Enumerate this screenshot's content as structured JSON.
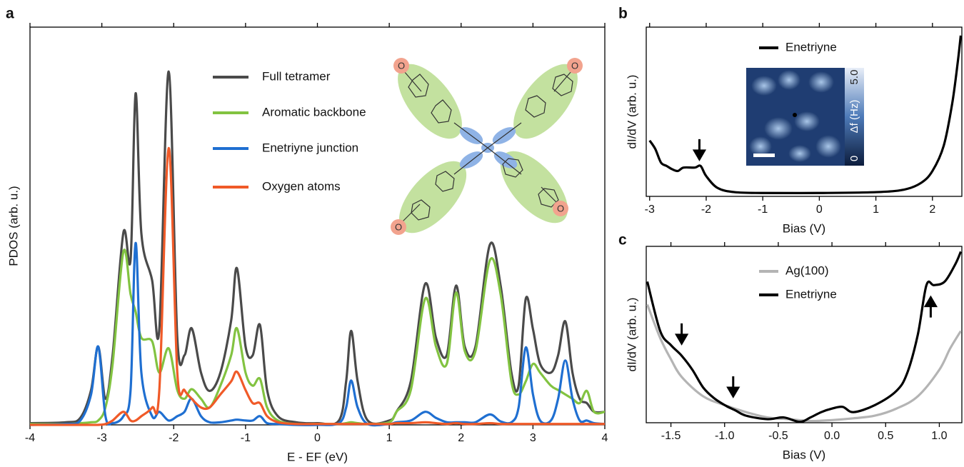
{
  "chart_data": [
    {
      "type": "line",
      "panel": "a",
      "xlabel": "E - EF (eV)",
      "ylabel": "PDOS (arb. u.)",
      "xlim": [
        -4,
        4
      ],
      "ylim": [
        0,
        4.57
      ],
      "xticks": [
        -4,
        -3,
        -2,
        -1,
        0,
        1,
        2,
        3,
        4
      ],
      "molecule_labels": [
        "O",
        "O",
        "O",
        "O"
      ],
      "x": [
        -4,
        -3.5,
        -3.3,
        -3.15,
        -3.05,
        -2.95,
        -2.85,
        -2.7,
        -2.6,
        -2.53,
        -2.45,
        -2.3,
        -2.2,
        -2.07,
        -1.95,
        -1.85,
        -1.75,
        -1.62,
        -1.5,
        -1.35,
        -1.2,
        -1.12,
        -1.0,
        -0.9,
        -0.8,
        -0.7,
        -0.55,
        -0.3,
        0,
        0.3,
        0.4,
        0.47,
        0.56,
        0.7,
        1.0,
        1.1,
        1.3,
        1.5,
        1.65,
        1.8,
        1.93,
        2.05,
        2.2,
        2.4,
        2.55,
        2.7,
        2.8,
        2.9,
        3.0,
        3.1,
        3.25,
        3.35,
        3.45,
        3.55,
        3.65,
        3.75,
        3.85,
        4.0
      ],
      "series": [
        {
          "name": "Full tetramer",
          "color": "#4a4a4a",
          "values": [
            0.02,
            0.03,
            0.08,
            0.4,
            0.9,
            0.3,
            0.8,
            2.21,
            1.9,
            3.81,
            2.2,
            1.66,
            1.1,
            4.06,
            1.0,
            0.8,
            1.11,
            0.6,
            0.39,
            0.6,
            1.2,
            1.8,
            0.9,
            0.8,
            1.15,
            0.4,
            0.1,
            0.03,
            0.02,
            0.05,
            0.5,
            1.08,
            0.5,
            0.05,
            0.05,
            0.15,
            0.5,
            1.62,
            1.0,
            0.8,
            1.6,
            0.9,
            0.9,
            2.07,
            1.6,
            0.6,
            0.45,
            1.45,
            1.1,
            0.7,
            0.6,
            0.8,
            1.19,
            0.6,
            0.3,
            0.25,
            0.15,
            0.15
          ]
        },
        {
          "name": "Aromatic backbone",
          "color": "#82c341",
          "values": [
            0.01,
            0.01,
            0.02,
            0.03,
            0.05,
            0.2,
            0.7,
            1.99,
            1.5,
            1.3,
            1.0,
            0.96,
            0.6,
            0.88,
            0.4,
            0.3,
            0.41,
            0.3,
            0.2,
            0.45,
            0.8,
            1.11,
            0.6,
            0.45,
            0.53,
            0.2,
            0.05,
            0.01,
            0.01,
            0.01,
            0.02,
            0.03,
            0.02,
            0.01,
            0.03,
            0.15,
            0.4,
            1.45,
            0.9,
            0.7,
            1.52,
            0.85,
            0.85,
            1.89,
            1.5,
            0.5,
            0.35,
            0.5,
            0.7,
            0.6,
            0.45,
            0.4,
            0.35,
            0.3,
            0.25,
            0.39,
            0.15,
            0.15
          ]
        },
        {
          "name": "Enetriyne junction",
          "color": "#1f6fd1",
          "values": [
            0,
            0.01,
            0.05,
            0.35,
            0.9,
            0.1,
            0.02,
            0.1,
            0.4,
            2.09,
            0.6,
            0.1,
            0.15,
            0.05,
            0.1,
            0.15,
            0.3,
            0.1,
            0.03,
            0.03,
            0.05,
            0.06,
            0.05,
            0.05,
            0.1,
            0.02,
            0.01,
            0,
            0,
            0.02,
            0.2,
            0.51,
            0.2,
            0.01,
            0.01,
            0.03,
            0.05,
            0.15,
            0.08,
            0.03,
            0.03,
            0.03,
            0.03,
            0.12,
            0.04,
            0.03,
            0.2,
            0.89,
            0.35,
            0.05,
            0.05,
            0.3,
            0.74,
            0.3,
            0.05,
            0.05,
            0.02,
            0.01
          ]
        },
        {
          "name": "Oxygen atoms",
          "color": "#f05a28",
          "values": [
            0,
            0,
            0,
            0,
            0,
            0.01,
            0.05,
            0.15,
            0.05,
            0.05,
            0.1,
            0.2,
            0.4,
            3.18,
            0.6,
            0.4,
            0.3,
            0.2,
            0.2,
            0.35,
            0.5,
            0.61,
            0.4,
            0.25,
            0.25,
            0.1,
            0.03,
            0.01,
            0.01,
            0.01,
            0.01,
            0.01,
            0.01,
            0.01,
            0.01,
            0.02,
            0.02,
            0.03,
            0.02,
            0.01,
            0.02,
            0.01,
            0.01,
            0.02,
            0.01,
            0.01,
            0.01,
            0.01,
            0.01,
            0.01,
            0.01,
            0.01,
            0.01,
            0.01,
            0.01,
            0.01,
            0.01,
            0.01
          ]
        }
      ]
    },
    {
      "type": "line",
      "panel": "b",
      "xlabel": "Bias (V)",
      "ylabel": "dI/dV (arb. u.)",
      "xlim": [
        -3.06,
        2.52
      ],
      "ylim": [
        0,
        1
      ],
      "xticks": [
        -3,
        -2,
        -1,
        0,
        1,
        2
      ],
      "inset_labels": [
        "5.0",
        "Δf (Hz)",
        "0"
      ],
      "arrows": [
        {
          "x": -2.12,
          "y": 0.22,
          "direction": "down"
        }
      ],
      "x": [
        -3,
        -2.9,
        -2.8,
        -2.7,
        -2.6,
        -2.5,
        -2.4,
        -2.2,
        -2.1,
        -2.0,
        -1.8,
        -1.5,
        -1,
        0,
        1,
        1.5,
        1.8,
        2.0,
        2.2,
        2.35,
        2.45,
        2.5
      ],
      "series": [
        {
          "name": "Enetriyne",
          "color": "#000000",
          "values": [
            0.33,
            0.28,
            0.2,
            0.18,
            0.16,
            0.15,
            0.17,
            0.17,
            0.18,
            0.12,
            0.05,
            0.025,
            0.02,
            0.02,
            0.025,
            0.04,
            0.08,
            0.15,
            0.3,
            0.55,
            0.8,
            0.95
          ]
        }
      ]
    },
    {
      "type": "line",
      "panel": "c",
      "xlabel": "Bias (V)",
      "ylabel": "dI/dV (arb. u.)",
      "xlim": [
        -1.73,
        1.21
      ],
      "ylim": [
        0,
        1
      ],
      "xticks": [
        -1.5,
        {
          "value": -1,
          "label": "-1.0"
        },
        -0.5,
        {
          "value": 0,
          "label": "0.0"
        },
        0.5,
        {
          "value": 1,
          "label": "1.0"
        }
      ],
      "arrows": [
        {
          "x": -1.4,
          "y": 0.45,
          "direction": "down"
        },
        {
          "x": -0.92,
          "y": 0.15,
          "direction": "down"
        },
        {
          "x": 0.92,
          "y": 0.71,
          "direction": "up"
        }
      ],
      "series": [
        {
          "name": "Ag(100)",
          "color": "#b4b4b4",
          "x": [
            -1.72,
            -1.6,
            -1.5,
            -1.4,
            -1.2,
            -1.0,
            -0.8,
            -0.6,
            -0.4,
            -0.2,
            0,
            0.2,
            0.4,
            0.6,
            0.8,
            1.0,
            1.1,
            1.2
          ],
          "values": [
            0.67,
            0.48,
            0.36,
            0.26,
            0.15,
            0.1,
            0.06,
            0.03,
            0.02,
            0.01,
            0.015,
            0.025,
            0.04,
            0.08,
            0.15,
            0.3,
            0.42,
            0.52
          ]
        },
        {
          "name": "Enetriyne",
          "color": "#000000",
          "x": [
            -1.72,
            -1.6,
            -1.5,
            -1.4,
            -1.3,
            -1.2,
            -1.1,
            -1.0,
            -0.9,
            -0.8,
            -0.6,
            -0.45,
            -0.3,
            -0.2,
            -0.1,
            0.0,
            0.1,
            0.2,
            0.4,
            0.6,
            0.7,
            0.8,
            0.88,
            0.95,
            1.05,
            1.15,
            1.2
          ],
          "values": [
            0.8,
            0.52,
            0.44,
            0.38,
            0.3,
            0.2,
            0.14,
            0.1,
            0.07,
            0.04,
            0.02,
            0.03,
            0.005,
            0.03,
            0.06,
            0.08,
            0.09,
            0.06,
            0.1,
            0.18,
            0.28,
            0.5,
            0.78,
            0.78,
            0.8,
            0.9,
            0.97
          ]
        }
      ]
    }
  ]
}
